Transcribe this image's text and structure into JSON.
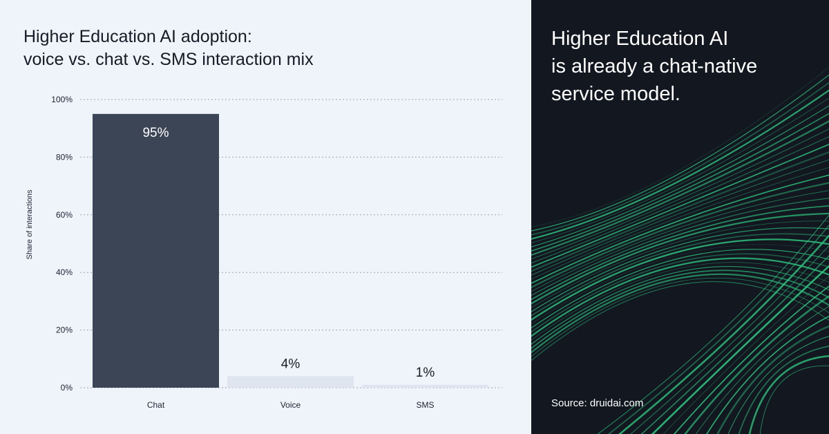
{
  "colors": {
    "bar_primary": "#3b4556",
    "bar_secondary": "#dfe5ee",
    "panel_dark": "#131820",
    "accent_green": "#2ec27e"
  },
  "chart_data": {
    "type": "bar",
    "title_lines": [
      "Higher Education AI adoption:",
      "voice vs. chat vs. SMS interaction mix"
    ],
    "categories": [
      "Chat",
      "Voice",
      "SMS"
    ],
    "values": [
      95,
      4,
      1
    ],
    "data_labels": [
      "95%",
      "4%",
      "1%"
    ],
    "xlabel": "",
    "ylabel": "Share of interactions",
    "ylim": [
      0,
      100
    ],
    "yticks": [
      0,
      20,
      40,
      60,
      80,
      100
    ],
    "ytick_labels": [
      "0%",
      "20%",
      "40%",
      "60%",
      "80%",
      "100%"
    ],
    "grid": true,
    "legend": "none"
  },
  "side_panel": {
    "headline_lines": [
      "Higher Education AI",
      "is already a chat-native",
      "service model."
    ],
    "source": "Source: druidai.com",
    "decoration": "green-light-streaks"
  }
}
